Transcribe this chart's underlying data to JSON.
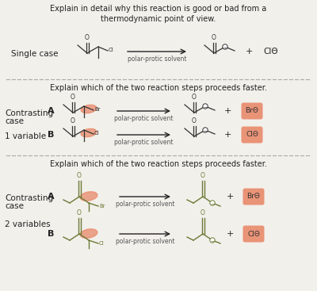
{
  "bg_color": "#f2f0eb",
  "section1": {
    "title": "Explain in detail why this reaction is good or bad from a\nthermodynamic point of view.",
    "label": "Single case",
    "arrow_text": "polar-protic solvent",
    "product_label": "ClΘ"
  },
  "section2": {
    "title": "Explain which of the two reaction steps proceeds faster.",
    "label_line1": "Contrasting",
    "label_line2": "case",
    "label_line3": "1 variable",
    "arrow_text": "polar-protic solvent",
    "product_A": "BrΘ",
    "product_B": "ClΘ",
    "highlight_color": "#e8896a"
  },
  "section3": {
    "title": "Explain which of the two reaction steps proceeds faster.",
    "label_line1": "Contrasting",
    "label_line2": "case",
    "label_line3": "2 variables",
    "arrow_text": "polar-protic solvent",
    "product_A": "BrΘ",
    "product_B": "ClΘ",
    "highlight_color": "#e8896a",
    "green_color": "#6b7a35"
  },
  "dashed_line_color": "#aaaaaa",
  "text_color": "#222222",
  "molecule_color": "#333333",
  "font_size_title": 7.0,
  "font_size_label": 7.5,
  "font_size_AB": 8.0,
  "font_size_arrow": 5.5,
  "font_size_halide": 6.5
}
